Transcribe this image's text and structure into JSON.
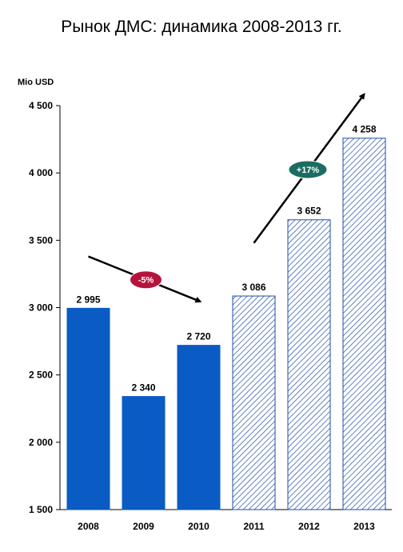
{
  "chart_data": {
    "type": "bar",
    "title": "Рынок ДМС: динамика 2008-2013 гг.",
    "ylabel": "Mio USD",
    "xlabel": "",
    "ylim": [
      1500,
      4500
    ],
    "yticks": [
      1500,
      2000,
      2500,
      3000,
      3500,
      4000,
      4500
    ],
    "ytick_labels": [
      "1 500",
      "2 000",
      "2 500",
      "3 000",
      "3 500",
      "4 000",
      "4 500"
    ],
    "categories": [
      "2008",
      "2009",
      "2010",
      "2011",
      "2012",
      "2013"
    ],
    "values": [
      2995,
      2340,
      2720,
      3086,
      3652,
      4258
    ],
    "value_labels": [
      "2 995",
      "2 340",
      "2 720",
      "3 086",
      "3 652",
      "4 258"
    ],
    "bar_styles": [
      "solid",
      "solid",
      "solid",
      "hatched",
      "hatched",
      "hatched"
    ],
    "grid": false,
    "colors": {
      "solid": "#0a5bc4",
      "hatch": "#1f4ea8",
      "down_badge": "#b5133d",
      "up_badge": "#1a6d62"
    },
    "annotations": [
      {
        "label": "-5%",
        "direction": "down",
        "from_category": "2008",
        "to_category": "2010"
      },
      {
        "label": "+17%",
        "direction": "up",
        "from_category": "2011",
        "to_category": "2013"
      }
    ]
  }
}
